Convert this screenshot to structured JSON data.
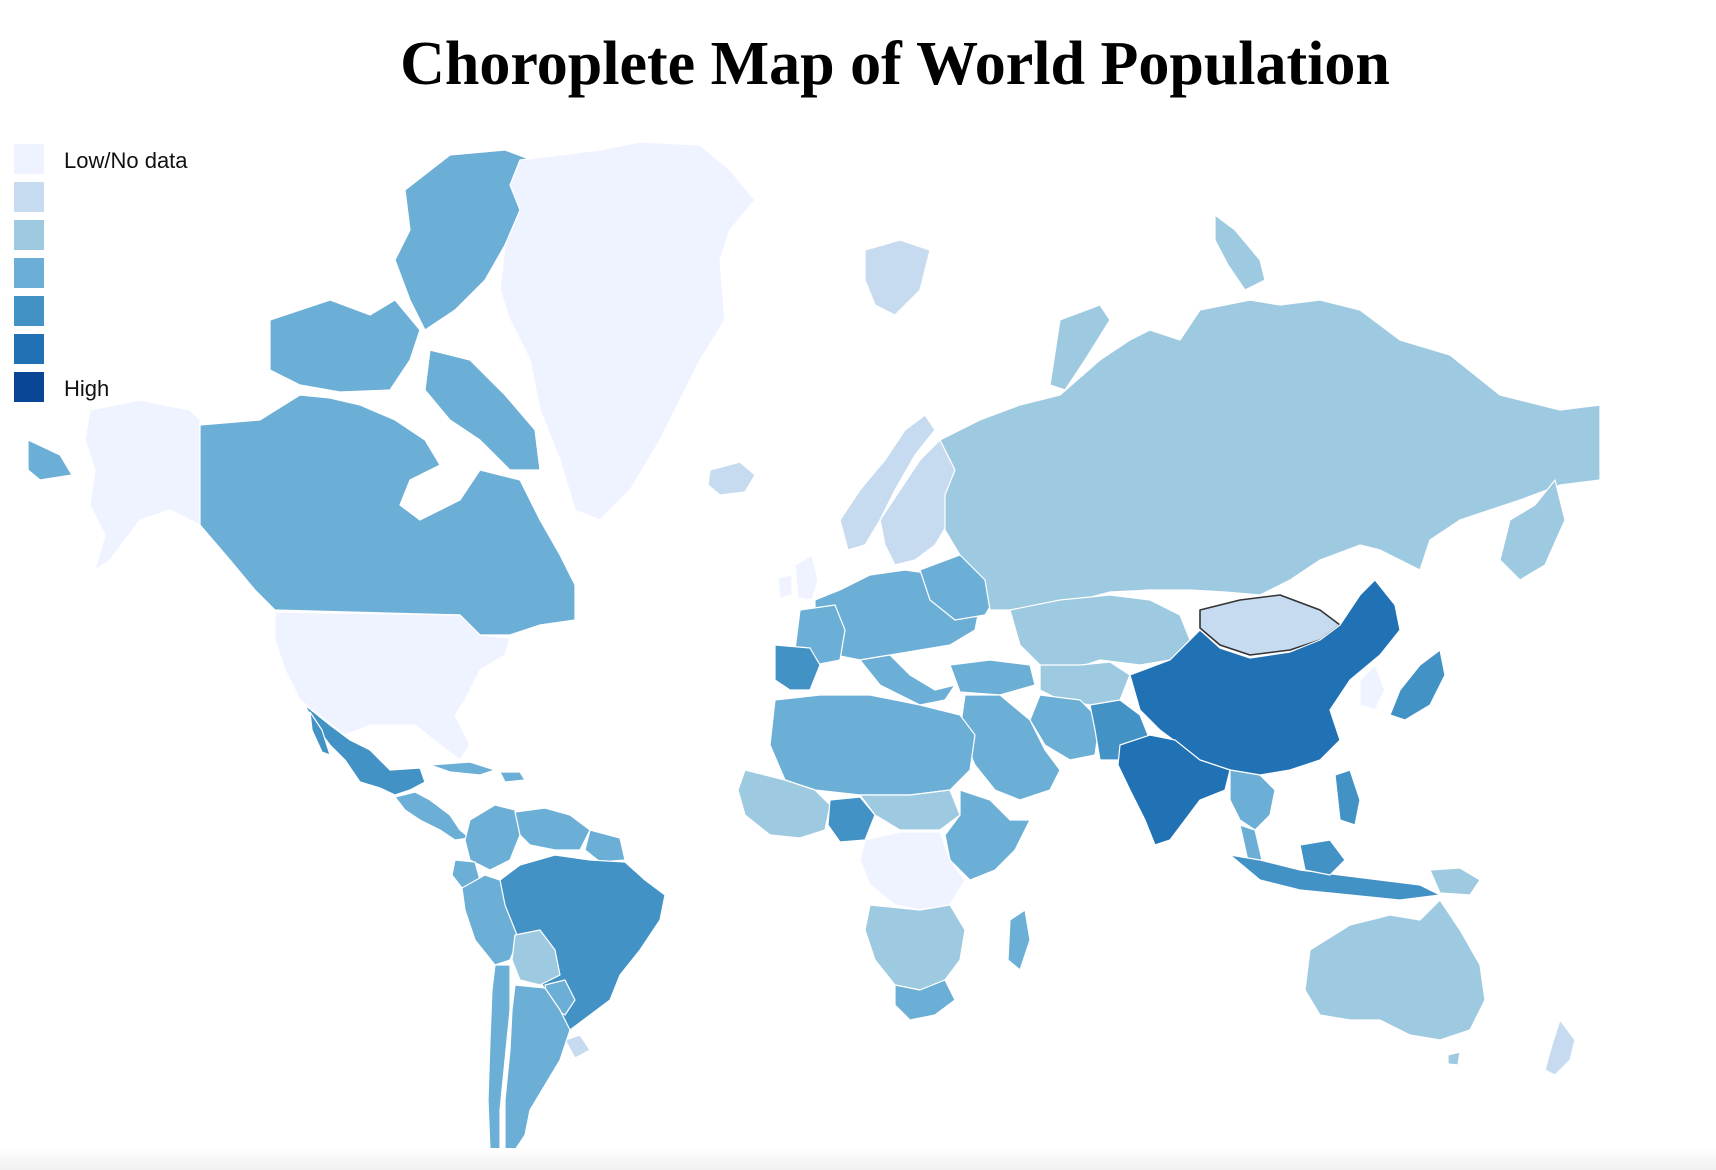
{
  "title": "Choroplete Map of World Population",
  "legend": {
    "items": [
      {
        "label": "Low/No data",
        "color": "#eff3ff"
      },
      {
        "label": "",
        "color": "#c6dbef"
      },
      {
        "label": "",
        "color": "#9ecae1"
      },
      {
        "label": "",
        "color": "#6baed6"
      },
      {
        "label": "",
        "color": "#4292c6"
      },
      {
        "label": "",
        "color": "#2171b5"
      },
      {
        "label": "High",
        "color": "#084594"
      }
    ]
  },
  "map": {
    "projection": "mercator",
    "highlighted_countries": [
      "Mongolia",
      "Spain"
    ],
    "region_levels": {
      "greenland": 0,
      "alaska_usa": 0,
      "usa": 0,
      "canada": 3,
      "mexico": 4,
      "central_america": 3,
      "caribbean": 3,
      "venezuela": 3,
      "colombia": 3,
      "peru": 3,
      "brazil": 4,
      "bolivia": 2,
      "paraguay": 3,
      "argentina": 3,
      "chile": 3,
      "uruguay": 1,
      "iceland": 1,
      "norway": 1,
      "sweden": 1,
      "finland": 1,
      "uk_ireland": 0,
      "europe": 3,
      "spain_portugal": 4,
      "russia": 2,
      "kazakhstan_central_asia": 2,
      "mongolia": 1,
      "china": 5,
      "india": 5,
      "middle_east": 3,
      "iran": 3,
      "pakistan": 4,
      "south_east_asia": 3,
      "indonesia": 4,
      "japan": 4,
      "korea": 0,
      "philippines": 4,
      "australia": 2,
      "new_zealand": 1,
      "papua_new_guinea": 2,
      "north_africa": 3,
      "sahel": 2,
      "west_africa": 2,
      "nigeria": 4,
      "ethiopia_east_africa": 3,
      "central_africa": 0,
      "southern_africa": 2,
      "south_africa": 3,
      "madagascar": 3
    }
  }
}
